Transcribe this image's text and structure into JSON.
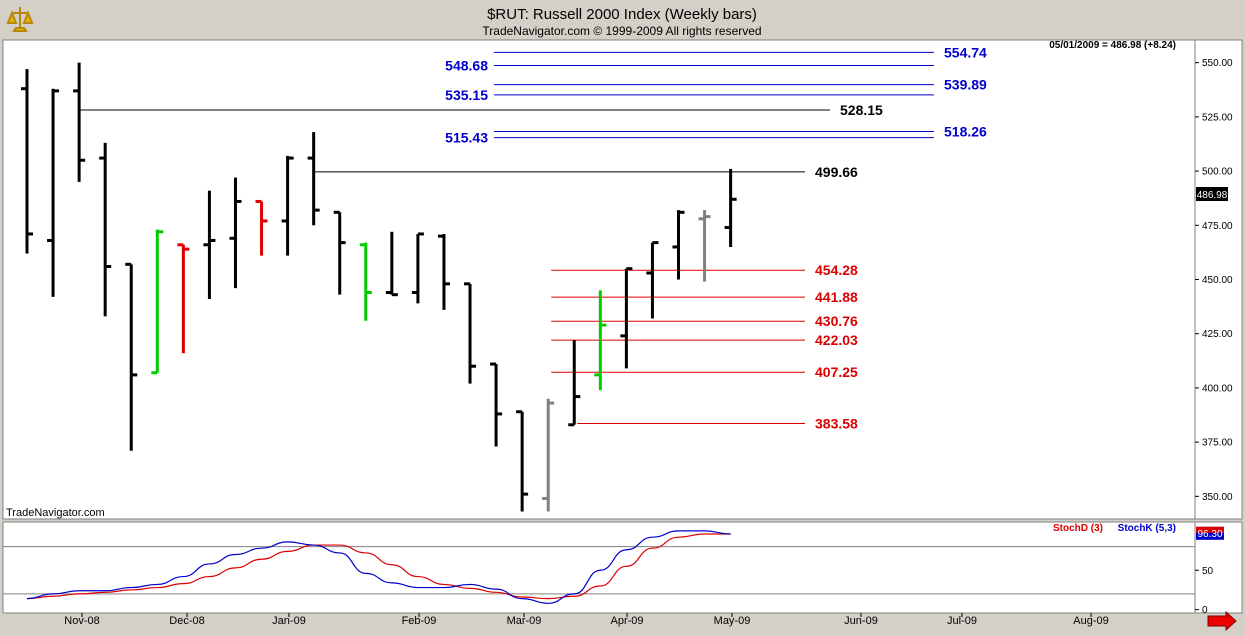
{
  "header": {
    "title": "$RUT:  Russell 2000 Index  (Weekly bars)",
    "subtitle": "TradeNavigator.com © 1999-2009 All rights reserved",
    "date_readout": "05/01/2009 = 486.98 (+8.24)",
    "last_price_badge": "486.98",
    "watermark": "TradeNavigator.com"
  },
  "colors": {
    "background": "#ffffff",
    "frame": "#d4d0c8",
    "up_bar": "#000000",
    "green_bar": "#00cc00",
    "red_bar": "#e00000",
    "gray_bar": "#808080",
    "blue_level": "#0000cc",
    "red_level": "#dd0000",
    "black_level": "#000000",
    "stoch_d": "#dd0000",
    "stoch_k": "#0000cc"
  },
  "icons": [
    "logo-icon",
    "scroll-right-arrow-icon"
  ],
  "chart_data": [
    {
      "type": "ohlc",
      "title": "$RUT:  Russell 2000 Index  (Weekly bars)",
      "ylim": [
        340,
        560
      ],
      "yticks": [
        "550.00",
        "525.00",
        "500.00",
        "475.00",
        "450.00",
        "425.00",
        "400.00",
        "375.00",
        "350.00"
      ],
      "ytick_values": [
        550,
        525,
        500,
        475,
        450,
        425,
        400,
        375,
        350
      ],
      "x_labels": [
        "Nov-08",
        "Dec-08",
        "Jan-09",
        "Feb-09",
        "Mar-09",
        "Apr-09",
        "May-09",
        "Jun-09",
        "Jul-09",
        "Aug-09"
      ],
      "bars": [
        {
          "open": 538,
          "high": 547,
          "low": 462,
          "close": 471,
          "color": "black"
        },
        {
          "open": 468,
          "high": 538,
          "low": 442,
          "close": 537,
          "color": "black"
        },
        {
          "open": 537,
          "high": 550,
          "low": 495,
          "close": 505,
          "color": "black"
        },
        {
          "open": 506,
          "high": 513,
          "low": 433,
          "close": 456,
          "color": "black"
        },
        {
          "open": 457,
          "high": 457,
          "low": 371,
          "close": 406,
          "color": "black"
        },
        {
          "open": 407,
          "high": 473,
          "low": 407,
          "close": 472,
          "color": "green"
        },
        {
          "open": 466,
          "high": 466,
          "low": 416,
          "close": 464,
          "color": "red"
        },
        {
          "open": 466,
          "high": 491,
          "low": 441,
          "close": 468,
          "color": "black"
        },
        {
          "open": 469,
          "high": 497,
          "low": 446,
          "close": 486,
          "color": "black"
        },
        {
          "open": 486,
          "high": 486,
          "low": 461,
          "close": 477,
          "color": "red"
        },
        {
          "open": 477,
          "high": 507,
          "low": 461,
          "close": 506,
          "color": "black"
        },
        {
          "open": 506,
          "high": 518,
          "low": 475,
          "close": 482,
          "color": "black"
        },
        {
          "open": 481,
          "high": 481,
          "low": 443,
          "close": 467,
          "color": "black"
        },
        {
          "open": 466,
          "high": 467,
          "low": 431,
          "close": 444,
          "color": "green"
        },
        {
          "open": 444,
          "high": 472,
          "low": 443,
          "close": 443,
          "color": "black"
        },
        {
          "open": 444,
          "high": 471,
          "low": 439,
          "close": 471,
          "color": "black"
        },
        {
          "open": 470,
          "high": 471,
          "low": 436,
          "close": 448,
          "color": "black"
        },
        {
          "open": 448,
          "high": 448,
          "low": 402,
          "close": 410,
          "color": "black"
        },
        {
          "open": 411,
          "high": 411,
          "low": 373,
          "close": 388,
          "color": "black"
        },
        {
          "open": 389,
          "high": 389,
          "low": 343,
          "close": 351,
          "color": "black"
        },
        {
          "open": 349,
          "high": 395,
          "low": 343,
          "close": 393,
          "color": "gray"
        },
        {
          "open": 383,
          "high": 422,
          "low": 383,
          "close": 396,
          "color": "black"
        },
        {
          "open": 406,
          "high": 445,
          "low": 399,
          "close": 429,
          "color": "green"
        },
        {
          "open": 424,
          "high": 455,
          "low": 409,
          "close": 455,
          "color": "black"
        },
        {
          "open": 453,
          "high": 467,
          "low": 432,
          "close": 467,
          "color": "black"
        },
        {
          "open": 465,
          "high": 482,
          "low": 450,
          "close": 481,
          "color": "black"
        },
        {
          "open": 478,
          "high": 482,
          "low": 449,
          "close": 479,
          "color": "gray"
        },
        {
          "open": 474,
          "high": 501,
          "low": 465,
          "close": 487,
          "color": "black"
        }
      ],
      "levels": [
        {
          "label": "554.74",
          "value": 554.74,
          "color": "blue",
          "side": "right",
          "start_bar": 18
        },
        {
          "label": "548.68",
          "value": 548.68,
          "color": "blue",
          "side": "left",
          "start_bar": 18
        },
        {
          "label": "539.89",
          "value": 539.89,
          "color": "blue",
          "side": "right",
          "start_bar": 18
        },
        {
          "label": "535.15",
          "value": 535.15,
          "color": "blue",
          "side": "left",
          "start_bar": 18
        },
        {
          "label": "528.15",
          "value": 528.15,
          "color": "black",
          "side": "right",
          "start_bar": 2
        },
        {
          "label": "518.26",
          "value": 518.26,
          "color": "blue",
          "side": "right",
          "start_bar": 18
        },
        {
          "label": "515.43",
          "value": 515.43,
          "color": "blue",
          "side": "left",
          "start_bar": 18
        },
        {
          "label": "499.66",
          "value": 499.66,
          "color": "black",
          "side": "right",
          "start_bar": 11
        },
        {
          "label": "454.28",
          "value": 454.28,
          "color": "red",
          "side": "right",
          "start_bar": 20
        },
        {
          "label": "441.88",
          "value": 441.88,
          "color": "red",
          "side": "right",
          "start_bar": 20
        },
        {
          "label": "430.76",
          "value": 430.76,
          "color": "red",
          "side": "right",
          "start_bar": 20
        },
        {
          "label": "422.03",
          "value": 422.03,
          "color": "red",
          "side": "right",
          "start_bar": 20
        },
        {
          "label": "407.25",
          "value": 407.25,
          "color": "red",
          "side": "right",
          "start_bar": 20
        },
        {
          "label": "383.58",
          "value": 383.58,
          "color": "red",
          "side": "right",
          "start_bar": 21
        }
      ]
    },
    {
      "type": "line",
      "title": "Stochastic",
      "ylim": [
        -3,
        110
      ],
      "yticks": [
        "50",
        "0"
      ],
      "ytick_values": [
        50,
        0
      ],
      "reference_lines": [
        80,
        20
      ],
      "last_value_badge": "96.30",
      "series": [
        {
          "name": "StochD (3)",
          "color": "red",
          "values": [
            14,
            17,
            20,
            22,
            25,
            28,
            33,
            42,
            53,
            64,
            74,
            82,
            82,
            72,
            57,
            42,
            32,
            27,
            22,
            16,
            14,
            17,
            30,
            55,
            78,
            92,
            96,
            96
          ]
        },
        {
          "name": "StochK (5,3)",
          "color": "blue",
          "values": [
            14,
            20,
            24,
            24,
            28,
            32,
            42,
            58,
            70,
            78,
            86,
            82,
            72,
            46,
            34,
            28,
            28,
            32,
            26,
            14,
            8,
            20,
            50,
            76,
            92,
            100,
            100,
            96
          ]
        }
      ]
    }
  ]
}
